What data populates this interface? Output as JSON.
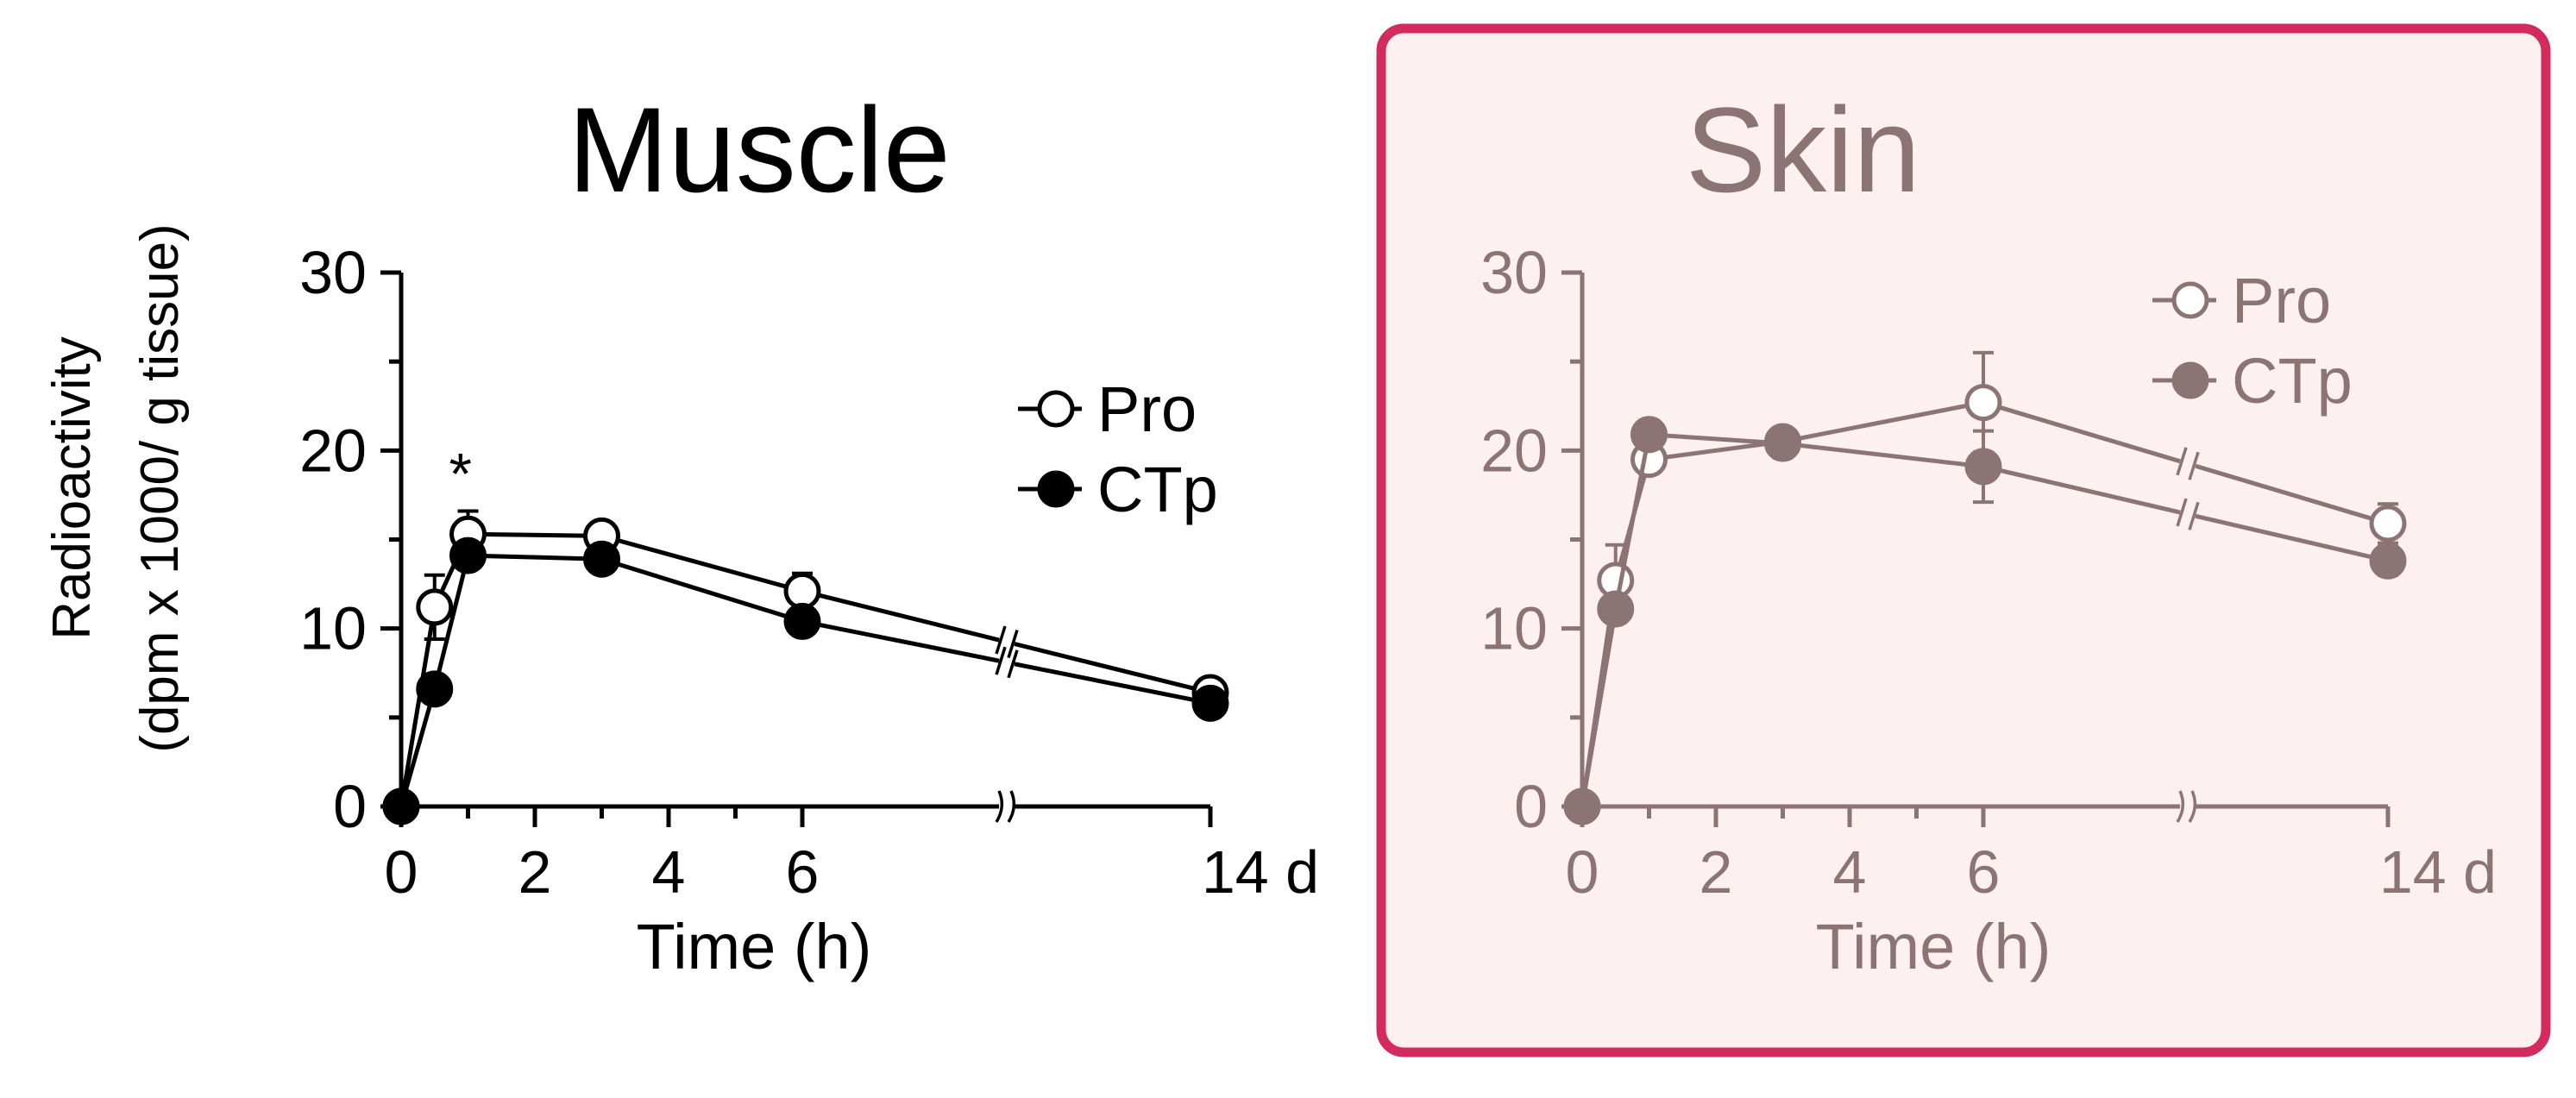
{
  "figure": {
    "ylabel_line1": "Radioactivity",
    "ylabel_line2": "(dpm x 1000/ g tissue)",
    "highlight_border_color": "#d42b5e",
    "highlight_fill_color": "#fdf0f0"
  },
  "chart_data": [
    {
      "type": "line",
      "title": "Muscle",
      "xlabel": "Time (h)",
      "ylabel": "Radioactivity (dpm x 1000/ g tissue)",
      "color": "#000000",
      "ylim": [
        0,
        30
      ],
      "yticks": [
        0,
        10,
        20,
        30
      ],
      "xlim": [
        0,
        14
      ],
      "xticks": [
        0,
        2,
        4,
        6,
        14
      ],
      "xtick_labels": [
        "0",
        "2",
        "4",
        "6",
        "14 d"
      ],
      "x_axis_break": true,
      "x_break_note": "axis break between 6 h and 14 d",
      "grid": false,
      "legend_position": "upper-right",
      "annotations": [
        {
          "text": "*",
          "x": 0.5,
          "y": 19.5
        }
      ],
      "series": [
        {
          "name": "Pro",
          "marker": "open-circle",
          "x": [
            0,
            0.5,
            1,
            3,
            6,
            14
          ],
          "y": [
            0,
            11.2,
            15.3,
            15.2,
            12.1,
            6.4
          ],
          "err": [
            0,
            1.8,
            1.3,
            0.6,
            1.0,
            0.5
          ]
        },
        {
          "name": "CTp",
          "marker": "filled-circle",
          "x": [
            0,
            0.5,
            1,
            3,
            6,
            14
          ],
          "y": [
            0,
            6.6,
            14.1,
            13.9,
            10.4,
            5.8
          ],
          "err": [
            0,
            0.4,
            0.5,
            0.5,
            0.6,
            0.3
          ]
        }
      ]
    },
    {
      "type": "line",
      "title": "Skin",
      "xlabel": "Time (h)",
      "ylabel": "",
      "color": "#8c7474",
      "ylim": [
        0,
        30
      ],
      "yticks": [
        0,
        10,
        20,
        30
      ],
      "xlim": [
        0,
        14
      ],
      "xticks": [
        0,
        2,
        4,
        6,
        14
      ],
      "xtick_labels": [
        "0",
        "2",
        "4",
        "6",
        "14 d"
      ],
      "x_axis_break": true,
      "x_break_note": "axis break between 6 h and 14 d",
      "grid": false,
      "legend_position": "upper-right",
      "annotations": [],
      "series": [
        {
          "name": "Pro",
          "marker": "open-circle",
          "x": [
            0,
            0.5,
            1,
            3,
            6,
            14
          ],
          "y": [
            0,
            12.7,
            19.5,
            20.5,
            22.7,
            15.9
          ],
          "err": [
            0,
            2.0,
            0.8,
            0.6,
            2.8,
            1.1
          ]
        },
        {
          "name": "CTp",
          "marker": "filled-circle",
          "x": [
            0,
            0.5,
            1,
            3,
            6,
            14
          ],
          "y": [
            0,
            11.1,
            20.9,
            20.4,
            19.1,
            13.8
          ],
          "err": [
            0,
            0.5,
            0.8,
            0.8,
            2.0,
            0.8
          ]
        }
      ]
    }
  ]
}
